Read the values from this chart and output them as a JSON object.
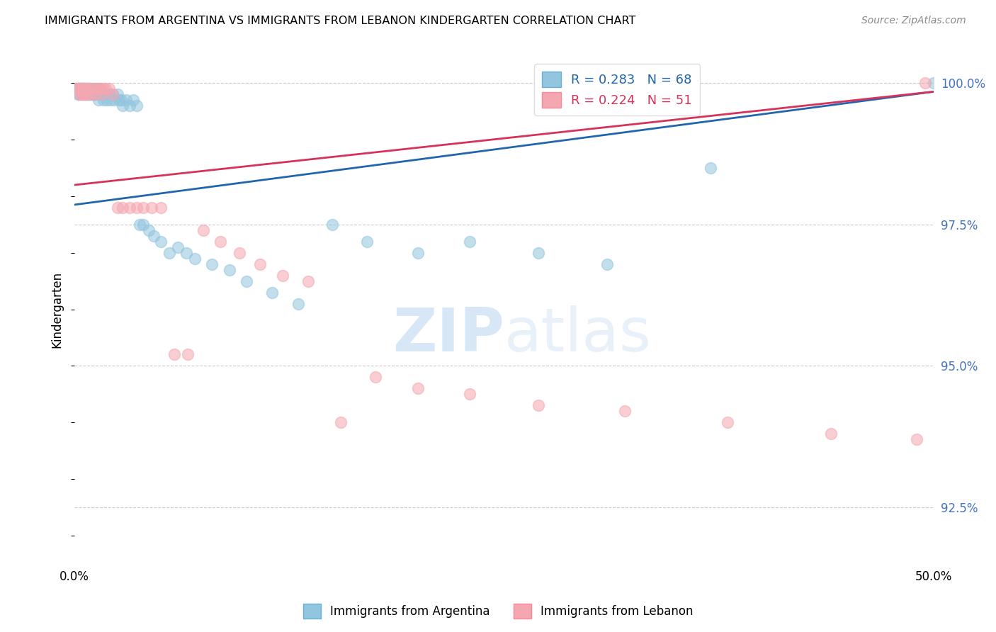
{
  "title": "IMMIGRANTS FROM ARGENTINA VS IMMIGRANTS FROM LEBANON KINDERGARTEN CORRELATION CHART",
  "source": "Source: ZipAtlas.com",
  "ylabel": "Kindergarten",
  "xlim": [
    0.0,
    0.5
  ],
  "ylim": [
    0.915,
    1.005
  ],
  "yticks": [
    0.925,
    0.95,
    0.975,
    1.0
  ],
  "ytick_labels": [
    "92.5%",
    "95.0%",
    "97.5%",
    "100.0%"
  ],
  "xtick_labels": [
    "0.0%",
    "",
    "",
    "",
    "",
    "50.0%"
  ],
  "xticks": [
    0.0,
    0.1,
    0.2,
    0.3,
    0.4,
    0.5
  ],
  "argentina_color": "#92c5de",
  "lebanon_color": "#f4a7b0",
  "argentina_R": 0.283,
  "argentina_N": 68,
  "lebanon_R": 0.224,
  "lebanon_N": 51,
  "argentina_line_color": "#2166ac",
  "lebanon_line_color": "#d6335a",
  "argentina_line_x": [
    0.0,
    0.5
  ],
  "argentina_line_y": [
    0.9785,
    0.9985
  ],
  "lebanon_line_x": [
    0.0,
    0.5
  ],
  "lebanon_line_y": [
    0.982,
    0.9985
  ],
  "arg_x": [
    0.001,
    0.002,
    0.002,
    0.003,
    0.003,
    0.003,
    0.004,
    0.004,
    0.005,
    0.005,
    0.005,
    0.006,
    0.006,
    0.007,
    0.007,
    0.008,
    0.008,
    0.009,
    0.009,
    0.01,
    0.01,
    0.011,
    0.011,
    0.012,
    0.012,
    0.013,
    0.014,
    0.014,
    0.015,
    0.015,
    0.016,
    0.017,
    0.018,
    0.019,
    0.02,
    0.021,
    0.022,
    0.023,
    0.025,
    0.026,
    0.027,
    0.028,
    0.03,
    0.032,
    0.034,
    0.036,
    0.038,
    0.04,
    0.043,
    0.046,
    0.05,
    0.055,
    0.06,
    0.065,
    0.07,
    0.08,
    0.09,
    0.1,
    0.115,
    0.13,
    0.15,
    0.17,
    0.2,
    0.23,
    0.27,
    0.31,
    0.37,
    0.5
  ],
  "arg_y": [
    0.999,
    0.999,
    0.998,
    0.999,
    0.999,
    0.998,
    0.999,
    0.998,
    0.999,
    0.999,
    0.998,
    0.999,
    0.998,
    0.999,
    0.998,
    0.999,
    0.998,
    0.999,
    0.998,
    0.999,
    0.998,
    0.999,
    0.998,
    0.999,
    0.998,
    0.999,
    0.998,
    0.997,
    0.999,
    0.998,
    0.998,
    0.997,
    0.998,
    0.997,
    0.998,
    0.997,
    0.998,
    0.997,
    0.998,
    0.997,
    0.997,
    0.996,
    0.997,
    0.996,
    0.997,
    0.996,
    0.975,
    0.975,
    0.974,
    0.973,
    0.972,
    0.97,
    0.971,
    0.97,
    0.969,
    0.968,
    0.967,
    0.965,
    0.963,
    0.961,
    0.975,
    0.972,
    0.97,
    0.972,
    0.97,
    0.968,
    0.985,
    1.0
  ],
  "leb_x": [
    0.001,
    0.002,
    0.002,
    0.003,
    0.003,
    0.004,
    0.004,
    0.005,
    0.005,
    0.006,
    0.006,
    0.007,
    0.007,
    0.008,
    0.009,
    0.01,
    0.011,
    0.012,
    0.013,
    0.014,
    0.015,
    0.016,
    0.017,
    0.018,
    0.02,
    0.022,
    0.025,
    0.028,
    0.032,
    0.036,
    0.04,
    0.045,
    0.05,
    0.058,
    0.066,
    0.075,
    0.085,
    0.096,
    0.108,
    0.121,
    0.136,
    0.155,
    0.175,
    0.2,
    0.23,
    0.27,
    0.32,
    0.38,
    0.44,
    0.49,
    0.495
  ],
  "leb_y": [
    0.999,
    0.999,
    0.999,
    0.999,
    0.998,
    0.999,
    0.998,
    0.999,
    0.998,
    0.999,
    0.998,
    0.999,
    0.998,
    0.999,
    0.999,
    0.998,
    0.999,
    0.998,
    0.999,
    0.999,
    0.999,
    0.998,
    0.999,
    0.999,
    0.999,
    0.998,
    0.978,
    0.978,
    0.978,
    0.978,
    0.978,
    0.978,
    0.978,
    0.952,
    0.952,
    0.974,
    0.972,
    0.97,
    0.968,
    0.966,
    0.965,
    0.94,
    0.948,
    0.946,
    0.945,
    0.943,
    0.942,
    0.94,
    0.938,
    0.937,
    1.0
  ]
}
